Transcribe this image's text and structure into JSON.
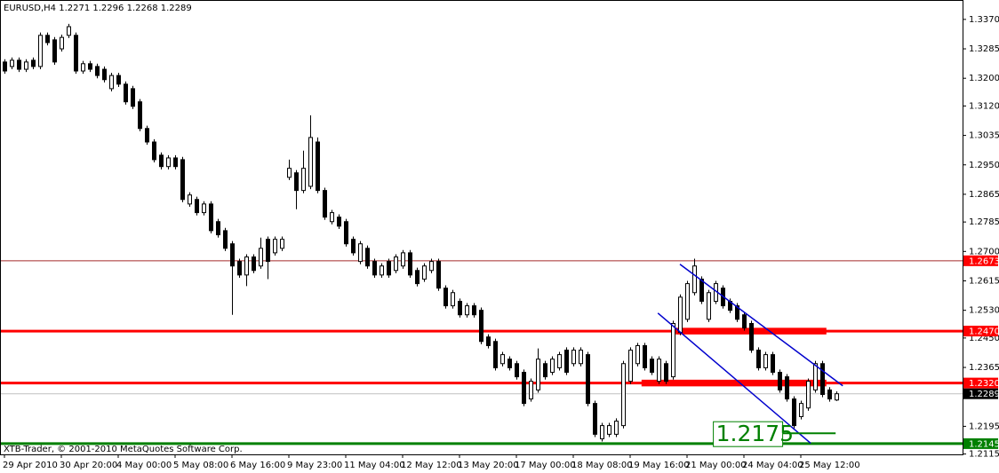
{
  "chart_data": {
    "type": "candlestick",
    "header_symbol": "EURUSD,H4",
    "footer": "XTB-Trader, © 2001-2010 MetaQuotes Software Corp.",
    "up_color": "#ffffff",
    "down_color": "#000000",
    "outline_color": "#000000",
    "categories": [
      "29 Apr 2010",
      null,
      null,
      null,
      null,
      null,
      null,
      null,
      "30 Apr 20:00",
      null,
      null,
      null,
      null,
      null,
      null,
      null,
      "4 May 00:00",
      null,
      null,
      null,
      null,
      null,
      null,
      null,
      "5 May 08:00",
      null,
      null,
      null,
      null,
      null,
      null,
      null,
      "6 May 16:00",
      null,
      null,
      null,
      null,
      null,
      null,
      null,
      "9 May 23:00",
      null,
      null,
      null,
      null,
      null,
      null,
      null,
      "11 May 04:00",
      null,
      null,
      null,
      null,
      null,
      null,
      null,
      "12 May 12:00",
      null,
      null,
      null,
      null,
      null,
      null,
      null,
      "13 May 20:00",
      null,
      null,
      null,
      null,
      null,
      null,
      null,
      "17 May 00:00",
      null,
      null,
      null,
      null,
      null,
      null,
      null,
      "18 May 08:00",
      null,
      null,
      null,
      null,
      null,
      null,
      null,
      "19 May 16:00",
      null,
      null,
      null,
      null,
      null,
      null,
      null,
      "21 May 00:00",
      null,
      null,
      null,
      null,
      null,
      null,
      null,
      "24 May 04:00",
      null,
      null,
      null,
      null,
      null,
      null,
      null,
      "25 May 12:00",
      null,
      null,
      null,
      null,
      null
    ],
    "open": [
      1.3247,
      1.3234,
      1.3252,
      1.3226,
      1.3252,
      1.3234,
      1.3324,
      1.3311,
      1.3285,
      1.3324,
      1.3324,
      1.3221,
      1.3242,
      1.3234,
      1.3226,
      1.317,
      1.3208,
      1.3183,
      1.317,
      1.3132,
      1.3055,
      1.3016,
      1.2978,
      1.2945,
      1.297,
      1.2965,
      1.2837,
      1.285,
      1.2812,
      1.2837,
      1.2786,
      1.276,
      1.2722,
      1.2671,
      1.2632,
      1.2684,
      1.2658,
      1.2735,
      1.2696,
      1.2709,
      1.2914,
      1.2927,
      1.2876,
      1.2888,
      1.3016,
      1.2876,
      1.2786,
      1.2799,
      1.2786,
      1.2735,
      1.2671,
      1.2709,
      1.2671,
      1.2632,
      1.2671,
      1.2645,
      1.2658,
      1.2696,
      1.2645,
      1.262,
      1.2645,
      1.2671,
      1.2594,
      1.2543,
      1.2556,
      1.2517,
      1.2543,
      1.253,
      1.2453,
      1.244,
      1.2376,
      1.2389,
      1.2376,
      1.2351,
      1.2274,
      1.23,
      1.2376,
      1.2351,
      1.2364,
      1.2415,
      1.2376,
      1.2376,
      1.2402,
      1.2261,
      1.2159,
      1.2172,
      1.2172,
      1.2197,
      1.2325,
      1.2376,
      1.2428,
      1.2389,
      1.2325,
      1.2376,
      1.2338,
      1.2466,
      1.2504,
      1.2581,
      1.262,
      1.2504,
      1.2556,
      1.2594,
      1.2556,
      1.2543,
      1.2517,
      1.2492,
      1.2415,
      1.2364,
      1.2402,
      1.2351,
      1.2338,
      1.2274,
      1.2223,
      1.2248,
      1.23,
      1.2376,
      1.23,
      1.2271
    ],
    "high": [
      1.3255,
      1.326,
      1.326,
      1.3255,
      1.326,
      1.3332,
      1.3332,
      1.3319,
      1.3326,
      1.3357,
      1.3332,
      1.325,
      1.325,
      1.3242,
      1.3234,
      1.3216,
      1.3216,
      1.3191,
      1.3178,
      1.314,
      1.3063,
      1.3024,
      1.2986,
      1.2978,
      1.2978,
      1.2973,
      1.2871,
      1.2858,
      1.2845,
      1.2845,
      1.2794,
      1.2768,
      1.273,
      1.2679,
      1.2692,
      1.2692,
      1.274,
      1.2743,
      1.2743,
      1.2743,
      1.2965,
      1.2935,
      1.2991,
      1.3093,
      1.3029,
      1.2884,
      1.282,
      1.2807,
      1.2794,
      1.2743,
      1.273,
      1.2717,
      1.2679,
      1.2666,
      1.2679,
      1.2692,
      1.2704,
      1.2704,
      1.2653,
      1.2666,
      1.2679,
      1.2679,
      1.2602,
      1.2589,
      1.2564,
      1.2551,
      1.2551,
      1.2538,
      1.2461,
      1.2448,
      1.241,
      1.2397,
      1.2384,
      1.2359,
      1.2333,
      1.242,
      1.2384,
      1.2397,
      1.241,
      1.2423,
      1.2423,
      1.2423,
      1.241,
      1.2269,
      1.2205,
      1.2205,
      1.2218,
      1.2384,
      1.2423,
      1.2436,
      1.2436,
      1.2397,
      1.2397,
      1.2384,
      1.25,
      1.2576,
      1.2615,
      1.2679,
      1.2628,
      1.2589,
      1.2615,
      1.2602,
      1.2564,
      1.2551,
      1.2525,
      1.25,
      1.2423,
      1.241,
      1.241,
      1.2359,
      1.2346,
      1.2282,
      1.2269,
      1.2333,
      1.2384,
      1.2384,
      1.2308,
      1.2296
    ],
    "low": [
      1.3213,
      1.3226,
      1.3218,
      1.3218,
      1.3226,
      1.3226,
      1.3295,
      1.3239,
      1.3277,
      1.3316,
      1.3213,
      1.3213,
      1.3218,
      1.32,
      1.3188,
      1.3162,
      1.3175,
      1.3124,
      1.3111,
      1.3047,
      1.3008,
      1.2957,
      1.2937,
      1.2937,
      1.2937,
      1.2842,
      1.2829,
      1.2804,
      1.2804,
      1.2752,
      1.274,
      1.2701,
      1.2517,
      1.2624,
      1.26,
      1.2637,
      1.265,
      1.262,
      1.2688,
      1.2701,
      1.2906,
      1.2822,
      1.2868,
      1.288,
      1.2868,
      1.2791,
      1.2778,
      1.2765,
      1.2714,
      1.2688,
      1.2663,
      1.265,
      1.2624,
      1.2624,
      1.2624,
      1.2637,
      1.265,
      1.2624,
      1.2599,
      1.2612,
      1.2637,
      1.2586,
      1.2535,
      1.2535,
      1.2509,
      1.2509,
      1.2509,
      1.2432,
      1.242,
      1.2356,
      1.2368,
      1.2356,
      1.233,
      1.2253,
      1.2266,
      1.2292,
      1.233,
      1.2343,
      1.2356,
      1.2343,
      1.2368,
      1.2368,
      1.2253,
      1.2164,
      1.2151,
      1.2164,
      1.2164,
      1.2189,
      1.2317,
      1.2368,
      1.2356,
      1.2343,
      1.2317,
      1.2317,
      1.233,
      1.2458,
      1.2496,
      1.2573,
      1.2548,
      1.2496,
      1.2548,
      1.2535,
      1.2522,
      1.2496,
      1.2471,
      1.2407,
      1.2356,
      1.2356,
      1.2343,
      1.2292,
      1.2266,
      1.2189,
      1.2215,
      1.224,
      1.2292,
      1.2279,
      1.2266,
      1.2268
    ],
    "close": [
      1.3221,
      1.3252,
      1.3226,
      1.3247,
      1.3234,
      1.3324,
      1.3303,
      1.3247,
      1.3318,
      1.3349,
      1.3221,
      1.3242,
      1.3226,
      1.3208,
      1.3196,
      1.3208,
      1.3183,
      1.3132,
      1.3119,
      1.3055,
      1.3016,
      1.2965,
      1.2945,
      1.297,
      1.2945,
      1.285,
      1.2863,
      1.2812,
      1.2837,
      1.276,
      1.2748,
      1.2709,
      1.2658,
      1.2632,
      1.2684,
      1.2645,
      1.2709,
      1.2671,
      1.2735,
      1.2735,
      1.294,
      1.2876,
      1.294,
      1.3029,
      1.2876,
      1.2799,
      1.2812,
      1.2773,
      1.2722,
      1.2696,
      1.2722,
      1.2658,
      1.2632,
      1.2658,
      1.2632,
      1.2684,
      1.2696,
      1.2632,
      1.2607,
      1.2658,
      1.2671,
      1.2594,
      1.2543,
      1.2581,
      1.2517,
      1.2543,
      1.2517,
      1.244,
      1.2428,
      1.2364,
      1.2402,
      1.2364,
      1.2338,
      1.2261,
      1.2325,
      1.2389,
      1.2338,
      1.2389,
      1.2402,
      1.2351,
      1.2415,
      1.2415,
      1.2261,
      1.2172,
      1.2197,
      1.2197,
      1.221,
      1.2376,
      1.2415,
      1.2428,
      1.2364,
      1.2351,
      1.2389,
      1.2325,
      1.2492,
      1.2568,
      1.2607,
      1.2658,
      1.2556,
      1.2581,
      1.2607,
      1.2543,
      1.253,
      1.2504,
      1.2479,
      1.2415,
      1.2364,
      1.2402,
      1.2351,
      1.23,
      1.2274,
      1.2197,
      1.2261,
      1.2325,
      1.2376,
      1.2287,
      1.2274,
      1.2289
    ],
    "ylim": [
      1.2114,
      1.3426
    ],
    "yticks": [
      {
        "value": 1.337,
        "label": "1.3370"
      },
      1.3285,
      {
        "value": 1.32,
        "label": "1.3200"
      },
      {
        "value": 1.312,
        "label": "1.3120"
      },
      1.3035,
      {
        "value": 1.295,
        "label": "1.2950"
      },
      1.2865,
      1.2785,
      {
        "value": 1.27,
        "label": "1.2700"
      },
      1.2615,
      {
        "value": 1.253,
        "label": "1.2530"
      },
      {
        "value": 1.245,
        "label": "1.2450"
      },
      1.2365,
      1.2195,
      1.2115
    ],
    "levels": [
      {
        "value": 1.2673,
        "color": "#a52a2a",
        "label_color": "#ff0000",
        "line_width": 1
      },
      {
        "value": 1.247,
        "label": "1.2470",
        "color": "#ff0000",
        "label_color": "#ff0000",
        "line_width": 3,
        "segment": [
          94.4,
          115.6
        ]
      },
      {
        "value": 1.232,
        "label": "1.2320",
        "color": "#ff0000",
        "label_color": "#ff0000",
        "line_width": 3,
        "segment": [
          89.6,
          115.6
        ]
      },
      {
        "value": 1.2289,
        "color": "#c0c0c0",
        "label_color": "#000000",
        "line_width": 1
      },
      {
        "value": 1.2145,
        "color": "#008000",
        "label_color": "#008000",
        "line_width": 3
      }
    ],
    "trendlines": [
      {
        "points": [
          [
            95,
            1.2663
          ],
          [
            117.9,
            1.2312
          ]
        ],
        "color": "#0000cd"
      },
      {
        "points": [
          [
            91.9,
            1.2522
          ],
          [
            113.4,
            1.2146
          ]
        ],
        "color": "#0000cd"
      }
    ],
    "annotation": {
      "text": "1.2175",
      "value": 1.2175,
      "from": 99.7,
      "to": 116.9,
      "color": "#008000"
    }
  }
}
